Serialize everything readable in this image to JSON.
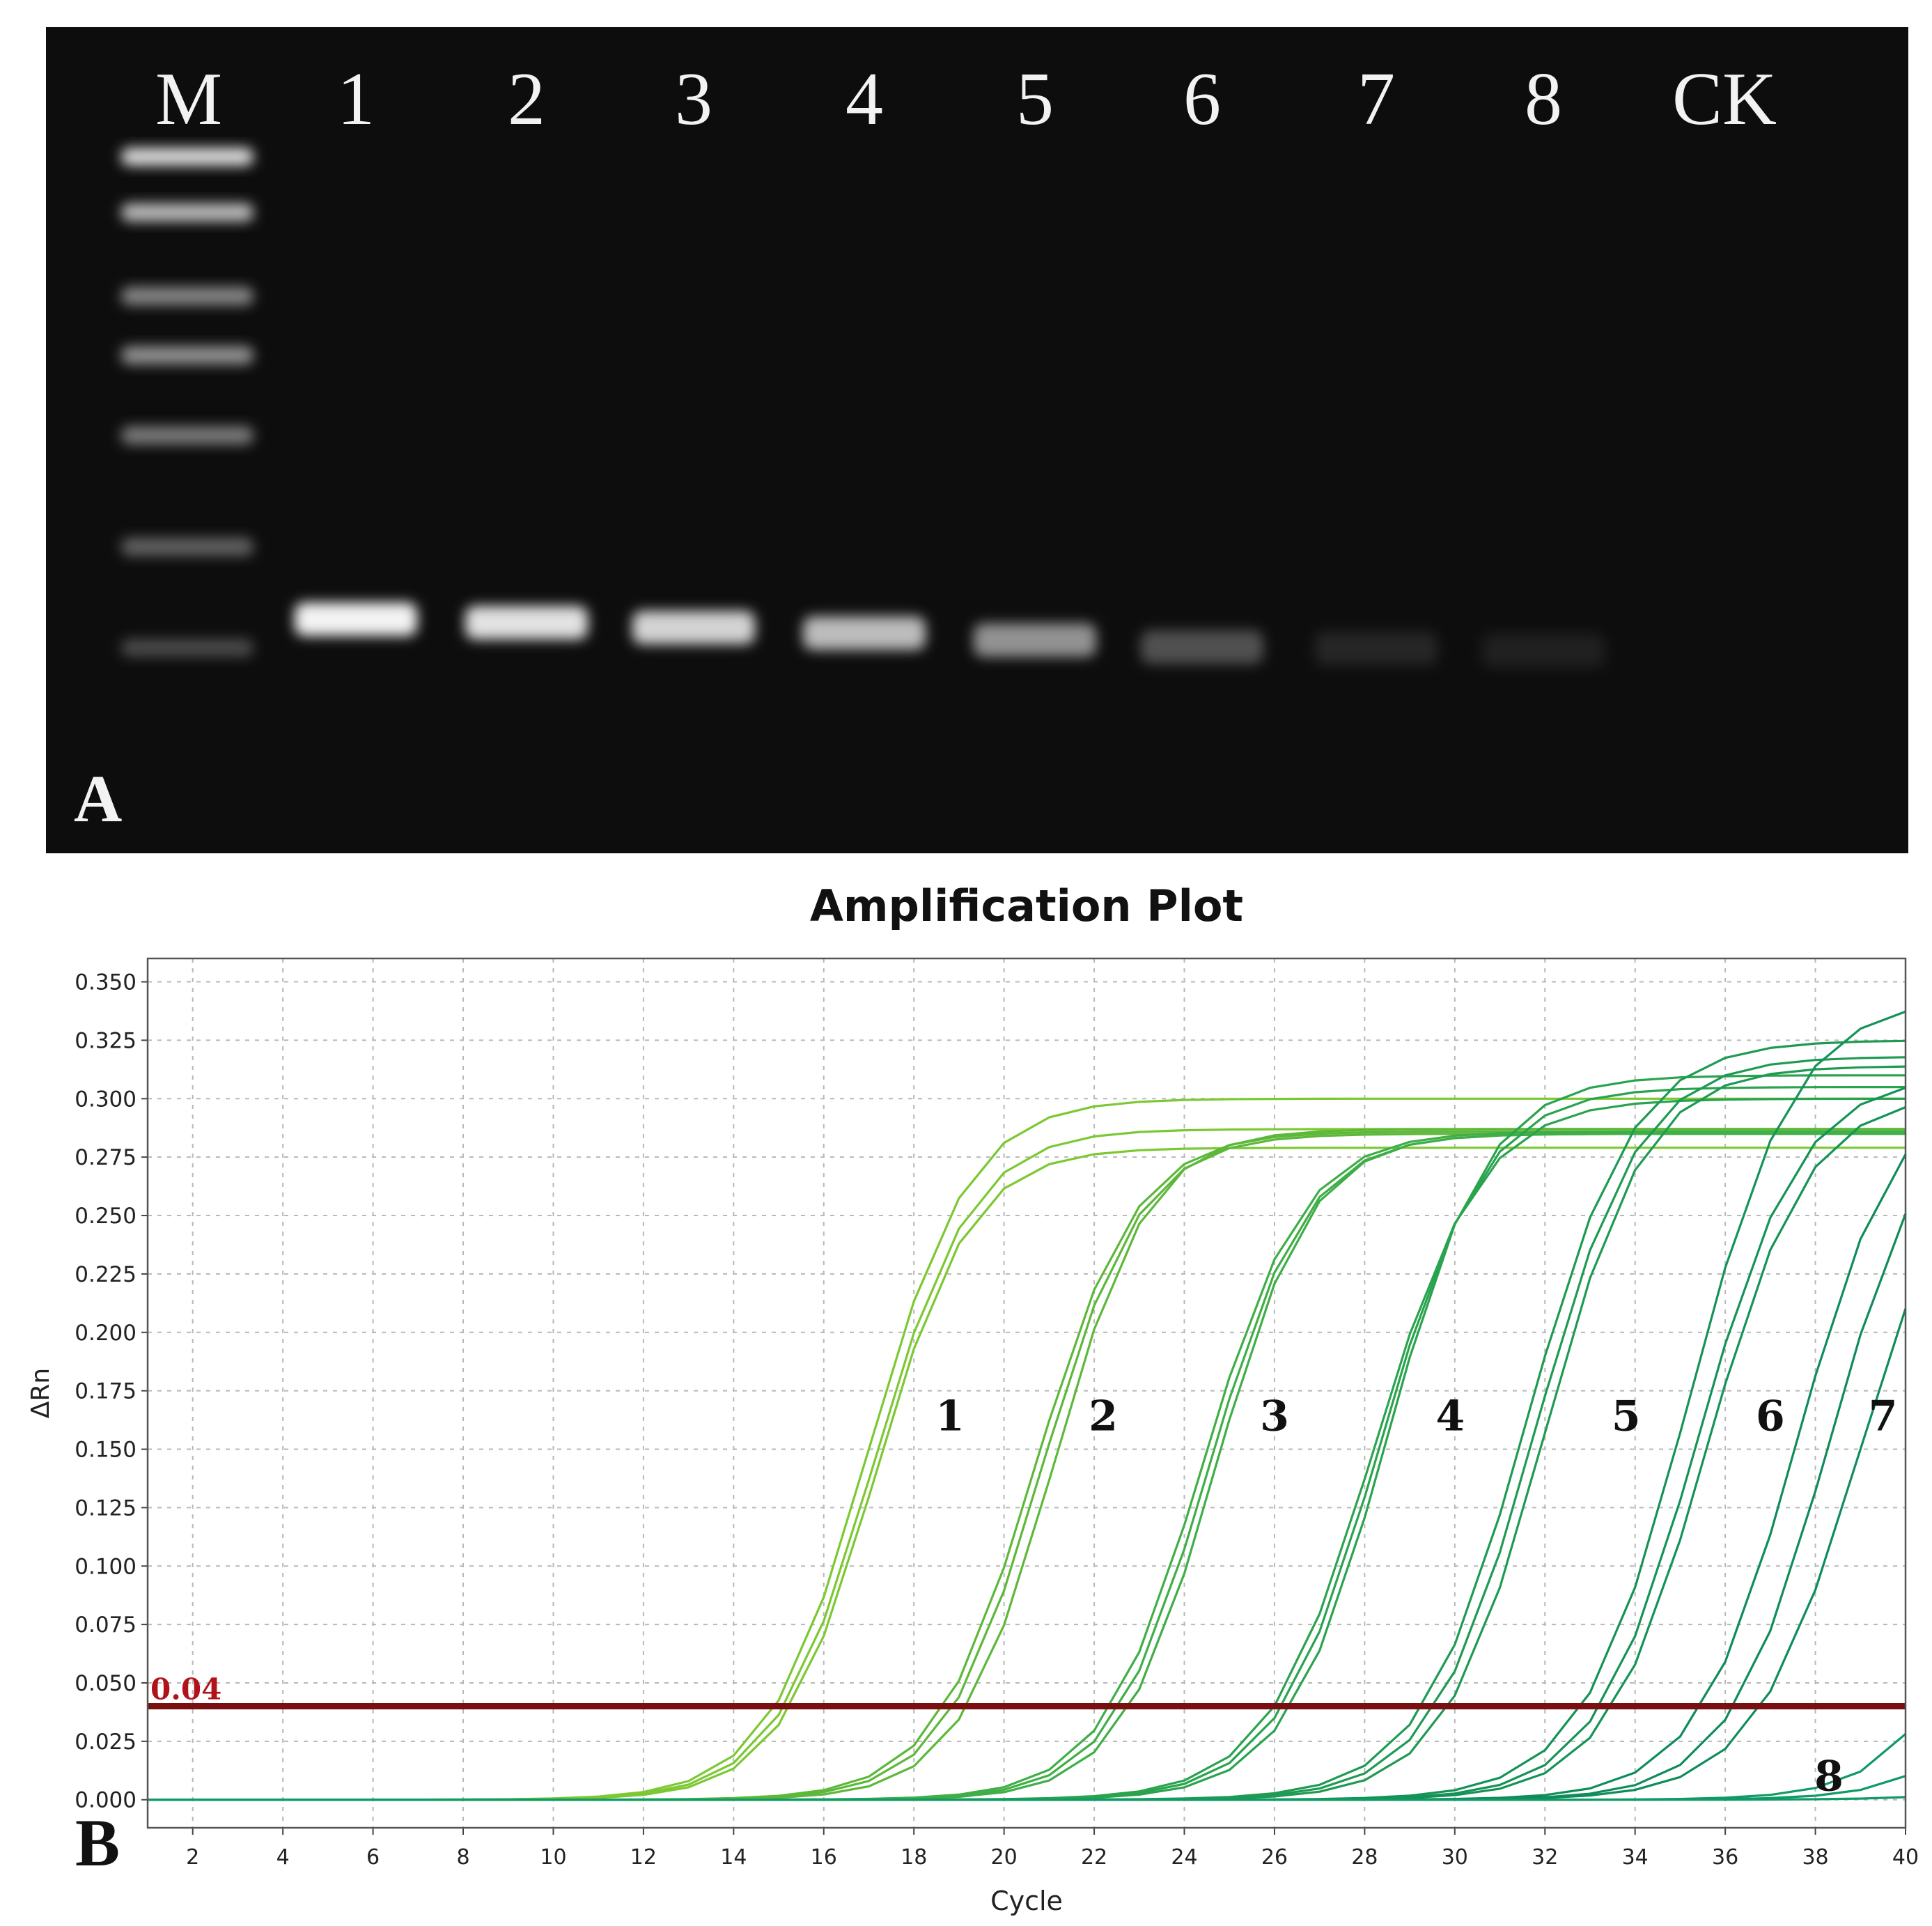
{
  "panel_a": {
    "label": "A",
    "lanes": [
      {
        "label": "M",
        "band_intensity": 0.0
      },
      {
        "label": "1",
        "band_intensity": 0.95
      },
      {
        "label": "2",
        "band_intensity": 0.88
      },
      {
        "label": "3",
        "band_intensity": 0.82
      },
      {
        "label": "4",
        "band_intensity": 0.72
      },
      {
        "label": "5",
        "band_intensity": 0.55
      },
      {
        "label": "6",
        "band_intensity": 0.28
      },
      {
        "label": "7",
        "band_intensity": 0.1
      },
      {
        "label": "8",
        "band_intensity": 0.08
      },
      {
        "label": "CK",
        "band_intensity": 0.0
      }
    ],
    "ladder_band_intensities": [
      0.85,
      0.72,
      0.5,
      0.55,
      0.45,
      0.35,
      0.25
    ]
  },
  "panel_b": {
    "label": "B",
    "threshold_label": "0.04"
  },
  "chart_data": {
    "type": "line",
    "title": "Amplification Plot",
    "xlabel": "Cycle",
    "ylabel": "ΔRn",
    "xlim": [
      1,
      40
    ],
    "ylim": [
      -0.012,
      0.36
    ],
    "x_ticks": [
      2,
      4,
      6,
      8,
      10,
      12,
      14,
      16,
      18,
      20,
      22,
      24,
      26,
      28,
      30,
      32,
      34,
      36,
      38,
      40
    ],
    "y_ticks": [
      "0.000",
      "0.025",
      "0.050",
      "0.075",
      "0.100",
      "0.125",
      "0.150",
      "0.175",
      "0.200",
      "0.225",
      "0.250",
      "0.275",
      "0.300",
      "0.325",
      "0.350"
    ],
    "grid": true,
    "threshold": 0.04,
    "colors": {
      "threshold": "#7a0f12",
      "threshold_text": "#b0141a",
      "curves": [
        "#7cc832",
        "#5db83a",
        "#3fae46",
        "#2aa34e",
        "#1e9a52",
        "#159356",
        "#108c5a",
        "#0f9a66"
      ]
    },
    "series": [
      {
        "name": "1",
        "label_pos": [
          18.8,
          0.158
        ],
        "curves": [
          {
            "midpoint": 17.0,
            "max": 0.3,
            "slope": 0.9
          },
          {
            "midpoint": 17.1,
            "max": 0.287,
            "slope": 0.92
          },
          {
            "midpoint": 17.15,
            "max": 0.279,
            "slope": 0.95
          }
        ]
      },
      {
        "name": "2",
        "label_pos": [
          22.2,
          0.158
        ],
        "curves": [
          {
            "midpoint": 20.7,
            "max": 0.286,
            "slope": 0.9
          },
          {
            "midpoint": 20.85,
            "max": 0.285,
            "slope": 0.92
          },
          {
            "midpoint": 21.1,
            "max": 0.287,
            "slope": 0.95
          }
        ]
      },
      {
        "name": "3",
        "label_pos": [
          26.0,
          0.158
        ],
        "curves": [
          {
            "midpoint": 24.4,
            "max": 0.286,
            "slope": 0.9
          },
          {
            "midpoint": 24.55,
            "max": 0.285,
            "slope": 0.92
          },
          {
            "midpoint": 24.7,
            "max": 0.285,
            "slope": 0.95
          }
        ]
      },
      {
        "name": "4",
        "label_pos": [
          29.9,
          0.158
        ],
        "curves": [
          {
            "midpoint": 28.2,
            "max": 0.3,
            "slope": 0.85
          },
          {
            "midpoint": 28.35,
            "max": 0.305,
            "slope": 0.87
          },
          {
            "midpoint": 28.5,
            "max": 0.31,
            "slope": 0.9
          }
        ]
      },
      {
        "name": "5",
        "label_pos": [
          33.8,
          0.158
        ],
        "curves": [
          {
            "midpoint": 31.6,
            "max": 0.325,
            "slope": 0.85
          },
          {
            "midpoint": 31.8,
            "max": 0.318,
            "slope": 0.87
          },
          {
            "midpoint": 32.0,
            "max": 0.314,
            "slope": 0.9
          }
        ]
      },
      {
        "name": "6",
        "label_pos": [
          37.0,
          0.158
        ],
        "curves": [
          {
            "midpoint": 35.2,
            "max": 0.343,
            "slope": 0.85
          },
          {
            "midpoint": 35.4,
            "max": 0.31,
            "slope": 0.88
          },
          {
            "midpoint": 35.6,
            "max": 0.302,
            "slope": 0.9
          }
        ]
      },
      {
        "name": "7",
        "label_pos": [
          39.5,
          0.158
        ],
        "curves": [
          {
            "midpoint": 37.6,
            "max": 0.308,
            "slope": 0.9
          },
          {
            "midpoint": 38.3,
            "max": 0.305,
            "slope": 0.9
          },
          {
            "midpoint": 39.0,
            "max": 0.3,
            "slope": 0.85
          }
        ]
      },
      {
        "name": "8",
        "label_pos": [
          38.3,
          0.004
        ],
        "curves": [
          {
            "midpoint": 42.6,
            "max": 0.32,
            "slope": 0.9
          },
          {
            "midpoint": 43.8,
            "max": 0.32,
            "slope": 0.9
          },
          {
            "midpoint": 47.0,
            "max": 0.3,
            "slope": 0.8
          }
        ]
      }
    ]
  }
}
